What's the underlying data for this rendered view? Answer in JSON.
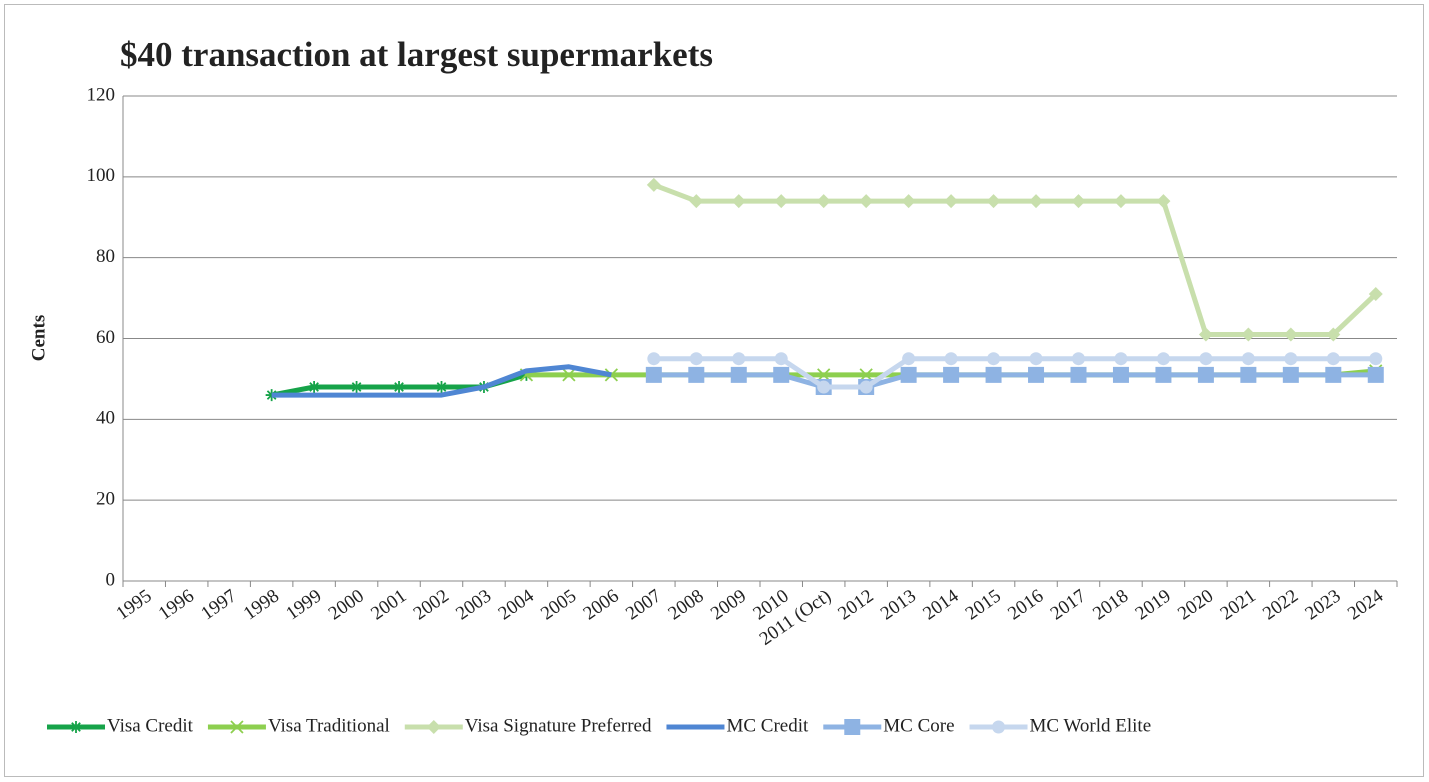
{
  "chart_data": {
    "type": "line",
    "title": "$40 transaction at largest supermarkets",
    "y_label": "Cents",
    "categories": [
      "1995",
      "1996",
      "1997",
      "1998",
      "1999",
      "2000",
      "2001",
      "2002",
      "2003",
      "2004",
      "2005",
      "2006",
      "2007",
      "2008",
      "2009",
      "2010",
      "2011 (Oct)",
      "2012",
      "2013",
      "2014",
      "2015",
      "2016",
      "2017",
      "2018",
      "2019",
      "2020",
      "2021",
      "2022",
      "2023",
      "2024"
    ],
    "ylim": [
      0,
      120
    ],
    "yticks": [
      0,
      20,
      40,
      60,
      80,
      100,
      120
    ],
    "grid": true,
    "legend": "bottom",
    "series": [
      {
        "name": "Visa Credit",
        "color": "#16a349",
        "marker": "star",
        "values": [
          null,
          null,
          null,
          46,
          48,
          48,
          48,
          48,
          48,
          51,
          null,
          null,
          null,
          null,
          null,
          null,
          null,
          null,
          null,
          null,
          null,
          null,
          null,
          null,
          null,
          null,
          null,
          null,
          null,
          null
        ]
      },
      {
        "name": "Visa Traditional",
        "color": "#8dcf4f",
        "marker": "x",
        "values": [
          null,
          null,
          null,
          null,
          null,
          null,
          null,
          null,
          null,
          51,
          51,
          51,
          51,
          51,
          51,
          51,
          51,
          51,
          51,
          51,
          51,
          51,
          51,
          51,
          51,
          51,
          51,
          51,
          51,
          52
        ]
      },
      {
        "name": "Visa Signature Preferred",
        "color": "#c8dfac",
        "marker": "diamond",
        "values": [
          null,
          null,
          null,
          null,
          null,
          null,
          null,
          null,
          null,
          null,
          null,
          null,
          98,
          94,
          94,
          94,
          94,
          94,
          94,
          94,
          94,
          94,
          94,
          94,
          94,
          61,
          61,
          61,
          61,
          71
        ]
      },
      {
        "name": "MC Credit",
        "color": "#4f86d3",
        "marker": "none",
        "values": [
          null,
          null,
          null,
          46,
          46,
          46,
          46,
          46,
          48,
          52,
          53,
          51,
          null,
          null,
          null,
          null,
          null,
          null,
          null,
          null,
          null,
          null,
          null,
          null,
          null,
          null,
          null,
          null,
          null,
          null
        ]
      },
      {
        "name": "MC Core",
        "color": "#8eb3e3",
        "marker": "square",
        "values": [
          null,
          null,
          null,
          null,
          null,
          null,
          null,
          null,
          null,
          null,
          null,
          null,
          51,
          51,
          51,
          51,
          48,
          48,
          51,
          51,
          51,
          51,
          51,
          51,
          51,
          51,
          51,
          51,
          51,
          51
        ]
      },
      {
        "name": "MC World Elite",
        "color": "#c6d7ee",
        "marker": "circle",
        "values": [
          null,
          null,
          null,
          null,
          null,
          null,
          null,
          null,
          null,
          null,
          null,
          null,
          55,
          55,
          55,
          55,
          48,
          48,
          55,
          55,
          55,
          55,
          55,
          55,
          55,
          55,
          55,
          55,
          55,
          55
        ]
      }
    ]
  }
}
